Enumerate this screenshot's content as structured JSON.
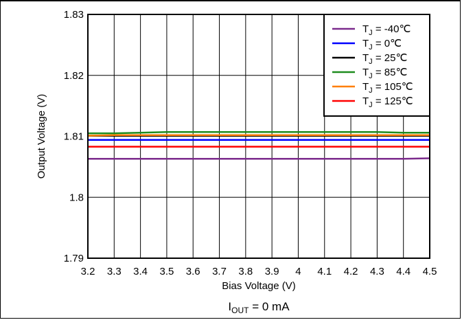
{
  "chart_data": {
    "type": "line",
    "xlabel": "Bias Voltage (V)",
    "ylabel": "Output Voltage (V)",
    "caption": {
      "main": "I",
      "sub": "OUT",
      "rest": " = 0 mA"
    },
    "xlim": [
      3.2,
      4.5
    ],
    "ylim": [
      1.79,
      1.83
    ],
    "x_ticks": [
      "3.2",
      "3.3",
      "3.4",
      "3.5",
      "3.6",
      "3.7",
      "3.8",
      "3.9",
      "4",
      "4.1",
      "4.2",
      "4.3",
      "4.4",
      "4.5"
    ],
    "y_ticks": [
      "1.79",
      "1.8",
      "1.81",
      "1.82",
      "1.83"
    ],
    "grid": true,
    "legend_position": "top-right",
    "x": [
      3.2,
      3.3,
      3.4,
      3.5,
      3.6,
      3.7,
      3.8,
      3.9,
      4.0,
      4.1,
      4.2,
      4.3,
      4.4,
      4.5
    ],
    "series": [
      {
        "name": "-40℃",
        "color": "#7B2A8C",
        "values": [
          1.8063,
          1.8063,
          1.8063,
          1.8063,
          1.8063,
          1.8063,
          1.8063,
          1.8063,
          1.8063,
          1.8063,
          1.8063,
          1.8063,
          1.8063,
          1.8064
        ]
      },
      {
        "name": "0℃",
        "color": "#0000FF",
        "values": [
          1.8094,
          1.8094,
          1.8094,
          1.8094,
          1.8094,
          1.8094,
          1.8094,
          1.8094,
          1.8094,
          1.8094,
          1.8094,
          1.8094,
          1.8094,
          1.8094
        ]
      },
      {
        "name": "25℃",
        "color": "#000000",
        "values": [
          1.8101,
          1.8101,
          1.8101,
          1.8101,
          1.8101,
          1.8101,
          1.8101,
          1.8101,
          1.8101,
          1.8101,
          1.8101,
          1.8101,
          1.8101,
          1.8101
        ]
      },
      {
        "name": "85℃",
        "color": "#1E8C1E",
        "values": [
          1.8105,
          1.8105,
          1.8106,
          1.8107,
          1.8107,
          1.8107,
          1.8107,
          1.8107,
          1.8107,
          1.8107,
          1.8107,
          1.8107,
          1.8106,
          1.8106
        ]
      },
      {
        "name": "105℃",
        "color": "#FF7F00",
        "values": [
          1.8101,
          1.8102,
          1.8102,
          1.8102,
          1.8102,
          1.8102,
          1.8102,
          1.8102,
          1.8102,
          1.8102,
          1.8102,
          1.8102,
          1.8102,
          1.8102
        ]
      },
      {
        "name": "125℃",
        "color": "#FF0000",
        "values": [
          1.8083,
          1.8083,
          1.8083,
          1.8083,
          1.8083,
          1.8083,
          1.8083,
          1.8083,
          1.8083,
          1.8083,
          1.8083,
          1.8083,
          1.8083,
          1.8083
        ]
      }
    ],
    "legend_prefix": {
      "main": "T",
      "sub": "J",
      "eq": " = "
    }
  }
}
